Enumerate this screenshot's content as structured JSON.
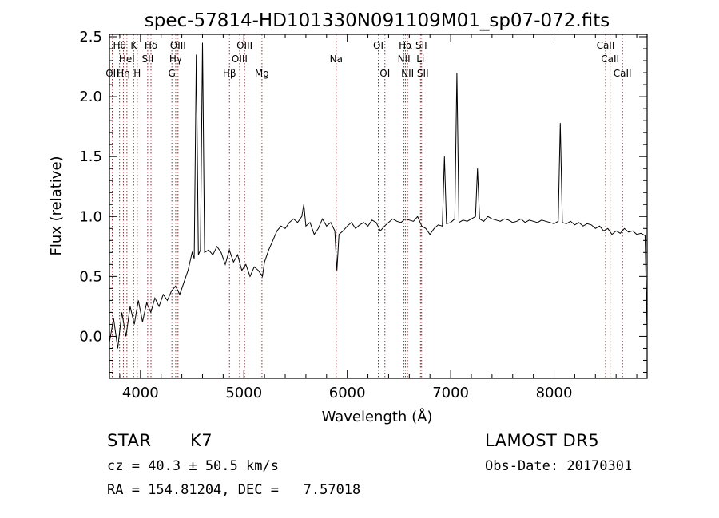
{
  "chart_data": {
    "type": "line",
    "title": "spec-57814-HD101330N091109M01_sp07-072.fits",
    "xlabel": "Wavelength (Å)",
    "ylabel": "Flux (relative)",
    "xlim": [
      3700,
      8900
    ],
    "ylim": [
      -0.35,
      2.52
    ],
    "xticks": [
      4000,
      5000,
      6000,
      7000,
      8000
    ],
    "yticks": [
      0.0,
      0.5,
      1.0,
      1.5,
      2.0,
      2.5
    ],
    "xtick_labels": [
      "4000",
      "5000",
      "6000",
      "7000",
      "8000"
    ],
    "ytick_labels": [
      "0.0",
      "0.5",
      "1.0",
      "1.5",
      "2.0",
      "2.5"
    ],
    "grid": false,
    "line_color": "#000000",
    "marker_color": "#b22222",
    "series": [
      {
        "x": [
          3700,
          3740,
          3780,
          3820,
          3860,
          3900,
          3940,
          3980,
          4020,
          4060,
          4100,
          4140,
          4180,
          4220,
          4260,
          4300,
          4340,
          4380,
          4420,
          4460,
          4500,
          4520,
          4540,
          4560,
          4580,
          4600,
          4620,
          4660,
          4700,
          4740,
          4780,
          4820,
          4860,
          4900,
          4940,
          4980,
          5020,
          5060,
          5100,
          5140,
          5180,
          5200,
          5240,
          5280,
          5320,
          5360,
          5400,
          5440,
          5480,
          5520,
          5560,
          5580,
          5600,
          5640,
          5680,
          5720,
          5760,
          5800,
          5840,
          5880,
          5900,
          5920,
          5960,
          6000,
          6040,
          6080,
          6120,
          6160,
          6200,
          6240,
          6280,
          6320,
          6360,
          6400,
          6440,
          6480,
          6520,
          6560,
          6600,
          6640,
          6680,
          6720,
          6760,
          6800,
          6840,
          6880,
          6920,
          6940,
          6960,
          7000,
          7040,
          7060,
          7080,
          7120,
          7160,
          7200,
          7240,
          7260,
          7280,
          7320,
          7360,
          7400,
          7440,
          7480,
          7520,
          7560,
          7600,
          7640,
          7680,
          7720,
          7760,
          7800,
          7840,
          7880,
          7920,
          7960,
          8000,
          8040,
          8060,
          8080,
          8120,
          8160,
          8200,
          8240,
          8280,
          8320,
          8360,
          8400,
          8440,
          8480,
          8520,
          8560,
          8600,
          8640,
          8680,
          8720,
          8760,
          8800,
          8840,
          8880,
          8900
        ],
        "y": [
          -0.05,
          0.15,
          -0.1,
          0.2,
          0.0,
          0.25,
          0.1,
          0.3,
          0.12,
          0.28,
          0.2,
          0.32,
          0.25,
          0.35,
          0.3,
          0.38,
          0.42,
          0.35,
          0.45,
          0.55,
          0.7,
          0.65,
          2.35,
          0.68,
          0.72,
          2.45,
          0.7,
          0.72,
          0.68,
          0.75,
          0.7,
          0.6,
          0.72,
          0.62,
          0.68,
          0.55,
          0.6,
          0.5,
          0.58,
          0.55,
          0.5,
          0.62,
          0.72,
          0.8,
          0.88,
          0.92,
          0.9,
          0.95,
          0.98,
          0.95,
          1.0,
          1.1,
          0.92,
          0.95,
          0.85,
          0.9,
          0.98,
          0.92,
          0.95,
          0.88,
          0.55,
          0.85,
          0.88,
          0.92,
          0.95,
          0.9,
          0.93,
          0.95,
          0.92,
          0.97,
          0.95,
          0.88,
          0.92,
          0.95,
          0.98,
          0.96,
          0.95,
          0.98,
          0.97,
          0.96,
          1.0,
          0.92,
          0.9,
          0.85,
          0.9,
          0.93,
          0.92,
          1.5,
          0.94,
          0.95,
          0.98,
          2.2,
          0.95,
          0.97,
          0.96,
          0.98,
          1.0,
          1.4,
          0.98,
          0.96,
          1.0,
          0.98,
          0.97,
          0.96,
          0.98,
          0.97,
          0.95,
          0.96,
          0.98,
          0.95,
          0.97,
          0.96,
          0.95,
          0.97,
          0.96,
          0.95,
          0.94,
          0.96,
          1.78,
          0.95,
          0.94,
          0.96,
          0.93,
          0.95,
          0.92,
          0.94,
          0.93,
          0.9,
          0.92,
          0.88,
          0.9,
          0.85,
          0.88,
          0.86,
          0.9,
          0.87,
          0.88,
          0.85,
          0.86,
          0.84,
          0.05
        ]
      }
    ],
    "lines": [
      {
        "wave": 3727,
        "labels": [
          "OII"
        ],
        "tier": 2
      },
      {
        "wave": 3798,
        "labels": [
          "Hθ"
        ],
        "tier": 0
      },
      {
        "wave": 3835,
        "labels": [
          "Hη"
        ],
        "tier": 2
      },
      {
        "wave": 3869,
        "labels": [
          "HeI"
        ],
        "tier": 1
      },
      {
        "wave": 3934,
        "labels": [
          "K"
        ],
        "tier": 0
      },
      {
        "wave": 3969,
        "labels": [
          "H"
        ],
        "tier": 2
      },
      {
        "wave": 4070,
        "labels": [
          "SII"
        ],
        "tier": 1
      },
      {
        "wave": 4102,
        "labels": [
          "Hδ"
        ],
        "tier": 0
      },
      {
        "wave": 4304,
        "labels": [
          "G"
        ],
        "tier": 2
      },
      {
        "wave": 4341,
        "labels": [
          "Hγ"
        ],
        "tier": 1
      },
      {
        "wave": 4363,
        "labels": [
          "OIII"
        ],
        "tier": 0
      },
      {
        "wave": 4861,
        "labels": [
          "Hβ"
        ],
        "tier": 2
      },
      {
        "wave": 4959,
        "labels": [
          "OIII"
        ],
        "tier": 1
      },
      {
        "wave": 5007,
        "labels": [
          "OIII"
        ],
        "tier": 0
      },
      {
        "wave": 5175,
        "labels": [
          "Mg"
        ],
        "tier": 2
      },
      {
        "wave": 5893,
        "labels": [
          "Na"
        ],
        "tier": 1
      },
      {
        "wave": 6300,
        "labels": [
          "OI"
        ],
        "tier": 0
      },
      {
        "wave": 6364,
        "labels": [
          "OI"
        ],
        "tier": 2
      },
      {
        "wave": 6548,
        "labels": [
          "NII"
        ],
        "tier": 1
      },
      {
        "wave": 6563,
        "labels": [
          "Hα"
        ],
        "tier": 0
      },
      {
        "wave": 6583,
        "labels": [
          "NII"
        ],
        "tier": 2
      },
      {
        "wave": 6708,
        "labels": [
          "Li"
        ],
        "tier": 1
      },
      {
        "wave": 6716,
        "labels": [
          "SII"
        ],
        "tier": 0
      },
      {
        "wave": 6731,
        "labels": [
          "SII"
        ],
        "tier": 2
      },
      {
        "wave": 8498,
        "labels": [
          "CaII"
        ],
        "tier": 0
      },
      {
        "wave": 8542,
        "labels": [
          "CaII"
        ],
        "tier": 1
      },
      {
        "wave": 8662,
        "labels": [
          "CaII"
        ],
        "tier": 2
      }
    ]
  },
  "info": {
    "object_class": "STAR",
    "subclass": "K7",
    "survey": "LAMOST DR5",
    "cz": "cz = 40.3 ± 50.5 km/s",
    "obs_date": "Obs-Date: 20170301",
    "coords": "RA = 154.81204, DEC =   7.57018"
  }
}
